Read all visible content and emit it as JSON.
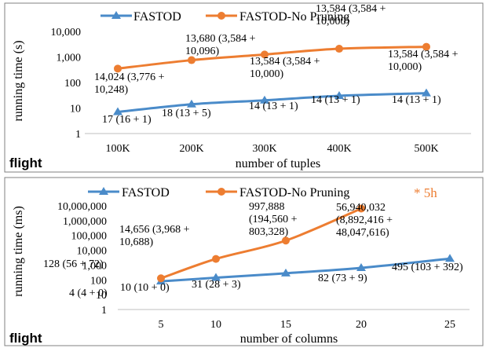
{
  "charts": [
    {
      "dataset_label": "flight",
      "xlabel": "number of tuples",
      "ylabel": "running time (s)",
      "legend": [
        "FASTOD",
        "FASTOD-No Pruning"
      ],
      "y_ticks": [
        "10,000",
        "1,000",
        "100",
        "10",
        "1"
      ],
      "x_ticks": [
        "100K",
        "200K",
        "300K",
        "400K",
        "500K"
      ],
      "labels": {
        "FASTOD": [
          "17 (16 + 1)",
          "18 (13 + 5)",
          "14 (13 + 1)",
          "14 (13 + 1)",
          "14 (13 + 1)"
        ],
        "FASTOD-No Pruning": [
          [
            "14,024 (3,776 +",
            "10,248)"
          ],
          [
            "13,680 (3,584 +",
            "10,096)"
          ],
          [
            "13,584 (3,584 +",
            "10,000)"
          ],
          [
            "13,584 (3,584 +",
            "10,000)"
          ],
          [
            "13,584 (3,584 +",
            "10,000)"
          ]
        ]
      }
    },
    {
      "dataset_label": "flight",
      "xlabel": "number of columns",
      "ylabel": "running time (ms)",
      "legend": [
        "FASTOD",
        "FASTOD-No Pruning"
      ],
      "note": "* 5h",
      "y_ticks": [
        "10,000,000",
        "1,000,000",
        "100,000",
        "10,000",
        "1,000",
        "100",
        "10",
        "1"
      ],
      "x_ticks": [
        "5",
        "10",
        "15",
        "20",
        "25"
      ],
      "labels": {
        "FASTOD": [
          "4 (4 + 0)",
          "10 (10 + 0)",
          "31 (28 + 3)",
          "82 (73 + 9)",
          "495 (103 + 392)"
        ],
        "FASTOD-No Pruning": [
          [
            "128 (56 + 72)"
          ],
          [
            "14,656 (3,968 +",
            "10,688)"
          ],
          [
            "997,888",
            "(194,560 +",
            "803,328)"
          ],
          [
            "56,940,032",
            "(8,892,416 +",
            "48,047,616)"
          ]
        ]
      }
    }
  ],
  "chart_data": [
    {
      "type": "line",
      "x": [
        "100K",
        "200K",
        "300K",
        "400K",
        "500K"
      ],
      "ylabel": "running time (s)",
      "xlabel": "number of tuples",
      "yscale": "log",
      "ylim": [
        1,
        10000
      ],
      "grid": false,
      "legend_position": "top",
      "series": [
        {
          "name": "FASTOD",
          "color": "#4a8bc9",
          "marker": "triangle",
          "values": [
            7,
            14,
            20,
            30,
            38
          ]
        },
        {
          "name": "FASTOD-No Pruning",
          "color": "#ed7d31",
          "marker": "circle",
          "values": [
            350,
            750,
            1250,
            2100,
            2500
          ]
        }
      ]
    },
    {
      "type": "line",
      "x": [
        "5",
        "10",
        "15",
        "20",
        "25"
      ],
      "ylabel": "running time (ms)",
      "xlabel": "number of columns",
      "yscale": "log",
      "ylim": [
        1,
        10000000
      ],
      "grid": false,
      "legend_position": "top",
      "series": [
        {
          "name": "FASTOD",
          "color": "#4a8bc9",
          "marker": "triangle",
          "values": [
            80,
            140,
            280,
            650,
            2700
          ]
        },
        {
          "name": "FASTOD-No Pruning",
          "color": "#ed7d31",
          "marker": "circle",
          "values": [
            128,
            2600,
            45000,
            6500000,
            null
          ]
        }
      ]
    }
  ]
}
